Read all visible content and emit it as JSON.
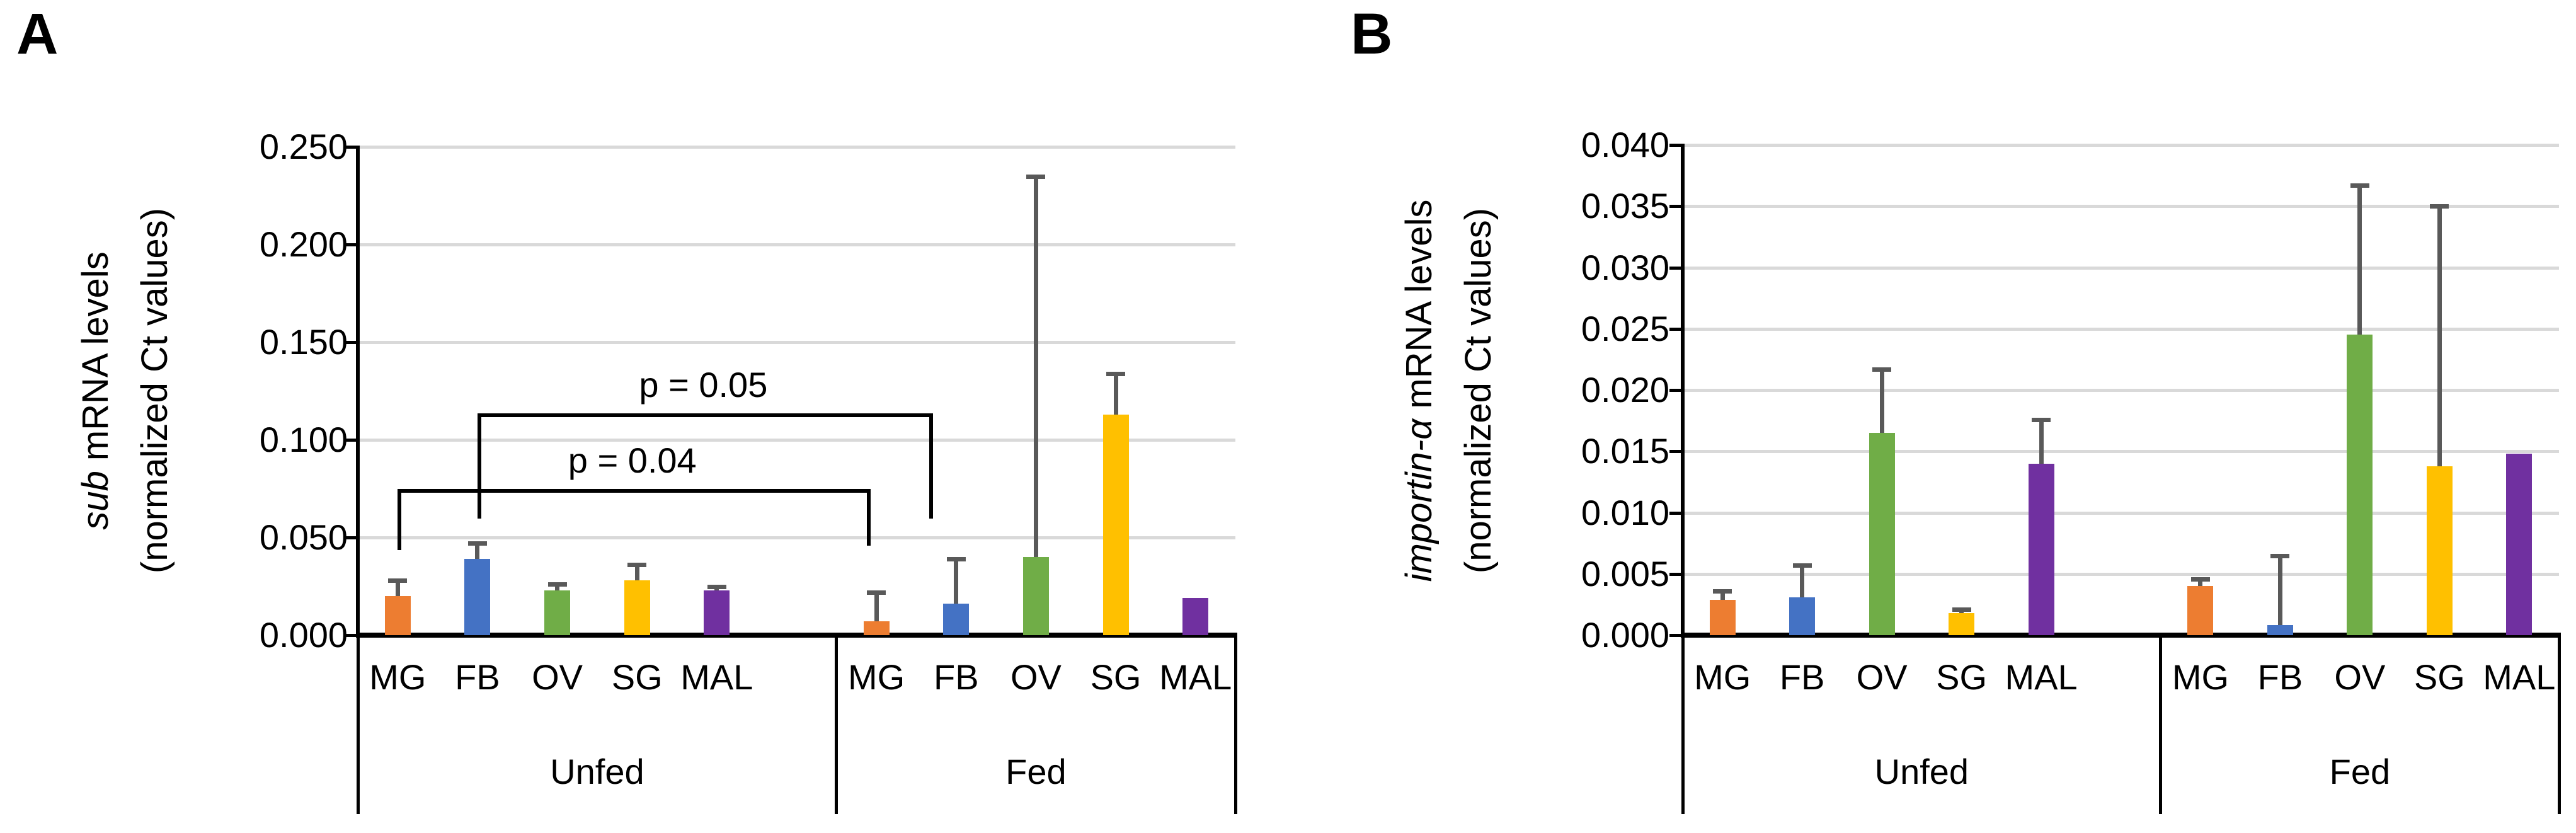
{
  "colors": {
    "MG": "#ED7D31",
    "FB": "#4472C4",
    "OV": "#70AD47",
    "SG": "#FFC000",
    "MAL": "#7030A0",
    "error_bar": "#595959",
    "gridline": "#D9D9D9",
    "axis": "#000000"
  },
  "chart_data": [
    {
      "id": "A",
      "type": "bar",
      "panel_letter": "A",
      "ylabel_italic": "sub",
      "ylabel_rest": " mRNA levels",
      "ylabel_line2": "(normalized Ct values)",
      "ylim": [
        0,
        0.25
      ],
      "ytick_step": 0.05,
      "yticks": [
        "0.000",
        "0.050",
        "0.100",
        "0.150",
        "0.200",
        "0.250"
      ],
      "grid": "horizontal",
      "legend": "none",
      "categories": [
        "MG",
        "FB",
        "OV",
        "SG",
        "MAL"
      ],
      "groups": [
        {
          "label": "Unfed",
          "values": [
            0.02,
            0.039,
            0.023,
            0.028,
            0.023
          ],
          "error_top": [
            0.028,
            0.047,
            0.026,
            0.036,
            0.025
          ]
        },
        {
          "label": "Fed",
          "values": [
            0.007,
            0.016,
            0.04,
            0.113,
            0.019
          ],
          "error_top": [
            0.022,
            0.039,
            0.235,
            0.134,
            null
          ]
        }
      ],
      "annotations": [
        {
          "label": "p = 0.05",
          "from": {
            "group": 0,
            "cat": 1
          },
          "to": {
            "group": 1,
            "cat": 1
          },
          "line_y": 0.1135,
          "from_end_y": 0.0597,
          "to_end_y": 0.0597
        },
        {
          "label": "p = 0.04",
          "from": {
            "group": 0,
            "cat": 0
          },
          "to": {
            "group": 1,
            "cat": 0
          },
          "line_y": 0.0748,
          "from_end_y": 0.0435,
          "to_end_y": 0.0458
        }
      ]
    },
    {
      "id": "B",
      "type": "bar",
      "panel_letter": "B",
      "ylabel_italic": "importin-α",
      "ylabel_rest": " mRNA levels",
      "ylabel_line2": "(normalized Ct values)",
      "ylim": [
        0,
        0.04
      ],
      "ytick_step": 0.005,
      "yticks": [
        "0.000",
        "0.005",
        "0.010",
        "0.015",
        "0.020",
        "0.025",
        "0.030",
        "0.035",
        "0.040"
      ],
      "grid": "horizontal",
      "legend": "none",
      "categories": [
        "MG",
        "FB",
        "OV",
        "SG",
        "MAL"
      ],
      "groups": [
        {
          "label": "Unfed",
          "values": [
            0.0029,
            0.0031,
            0.0165,
            0.0018,
            0.014
          ],
          "error_top": [
            0.0036,
            0.0057,
            0.0217,
            0.0021,
            0.0176
          ]
        },
        {
          "label": "Fed",
          "values": [
            0.004,
            0.0008,
            0.0245,
            0.0138,
            0.0148
          ],
          "error_top": [
            0.0046,
            0.0065,
            0.0367,
            0.035,
            null
          ]
        }
      ],
      "annotations": []
    }
  ]
}
